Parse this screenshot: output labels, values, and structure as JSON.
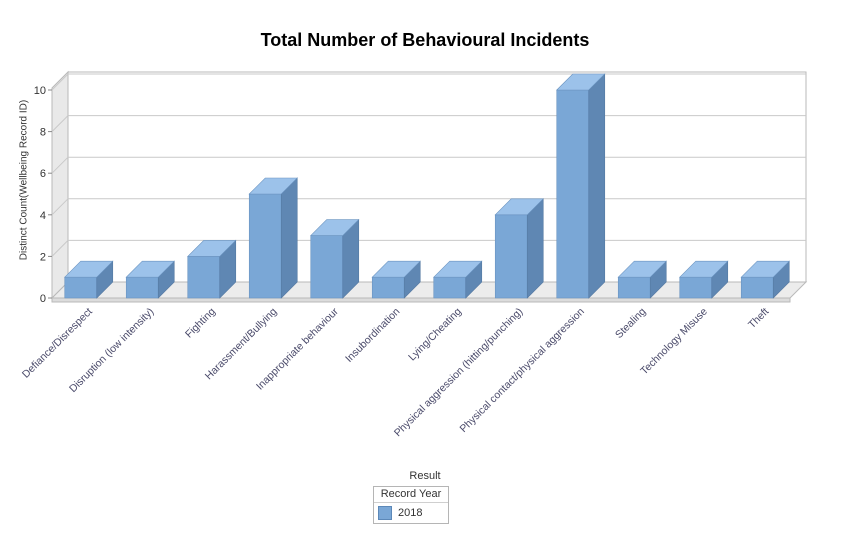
{
  "chart_data": {
    "type": "bar",
    "title": "Total Number of Behavioural Incidents",
    "xlabel": "Result",
    "ylabel": "Distinct Count(Wellbeing Record ID)",
    "categories": [
      "Defiance/Disrespect",
      "Disruption (low intensity)",
      "Fighting",
      "Harassment/Bullying",
      "Inappropriate behaviour",
      "Insubordination",
      "Lying/Cheating",
      "Physical aggression (hitting/punching)",
      "Physical contact/physical aggression",
      "Stealing",
      "Technology Misuse",
      "Theft"
    ],
    "series": [
      {
        "name": "2018",
        "values": [
          1,
          1,
          2,
          5,
          3,
          1,
          1,
          4,
          10,
          1,
          1,
          1
        ]
      }
    ],
    "ylim": [
      0,
      10
    ],
    "yticks": [
      0,
      2,
      4,
      6,
      8,
      10
    ],
    "grid": true,
    "legend": {
      "title": "Record Year",
      "position": "bottom-center"
    },
    "colors": {
      "bar_front": "#7aa7d6",
      "bar_side": "#5f87b3",
      "bar_top": "#9cc2ea"
    }
  }
}
